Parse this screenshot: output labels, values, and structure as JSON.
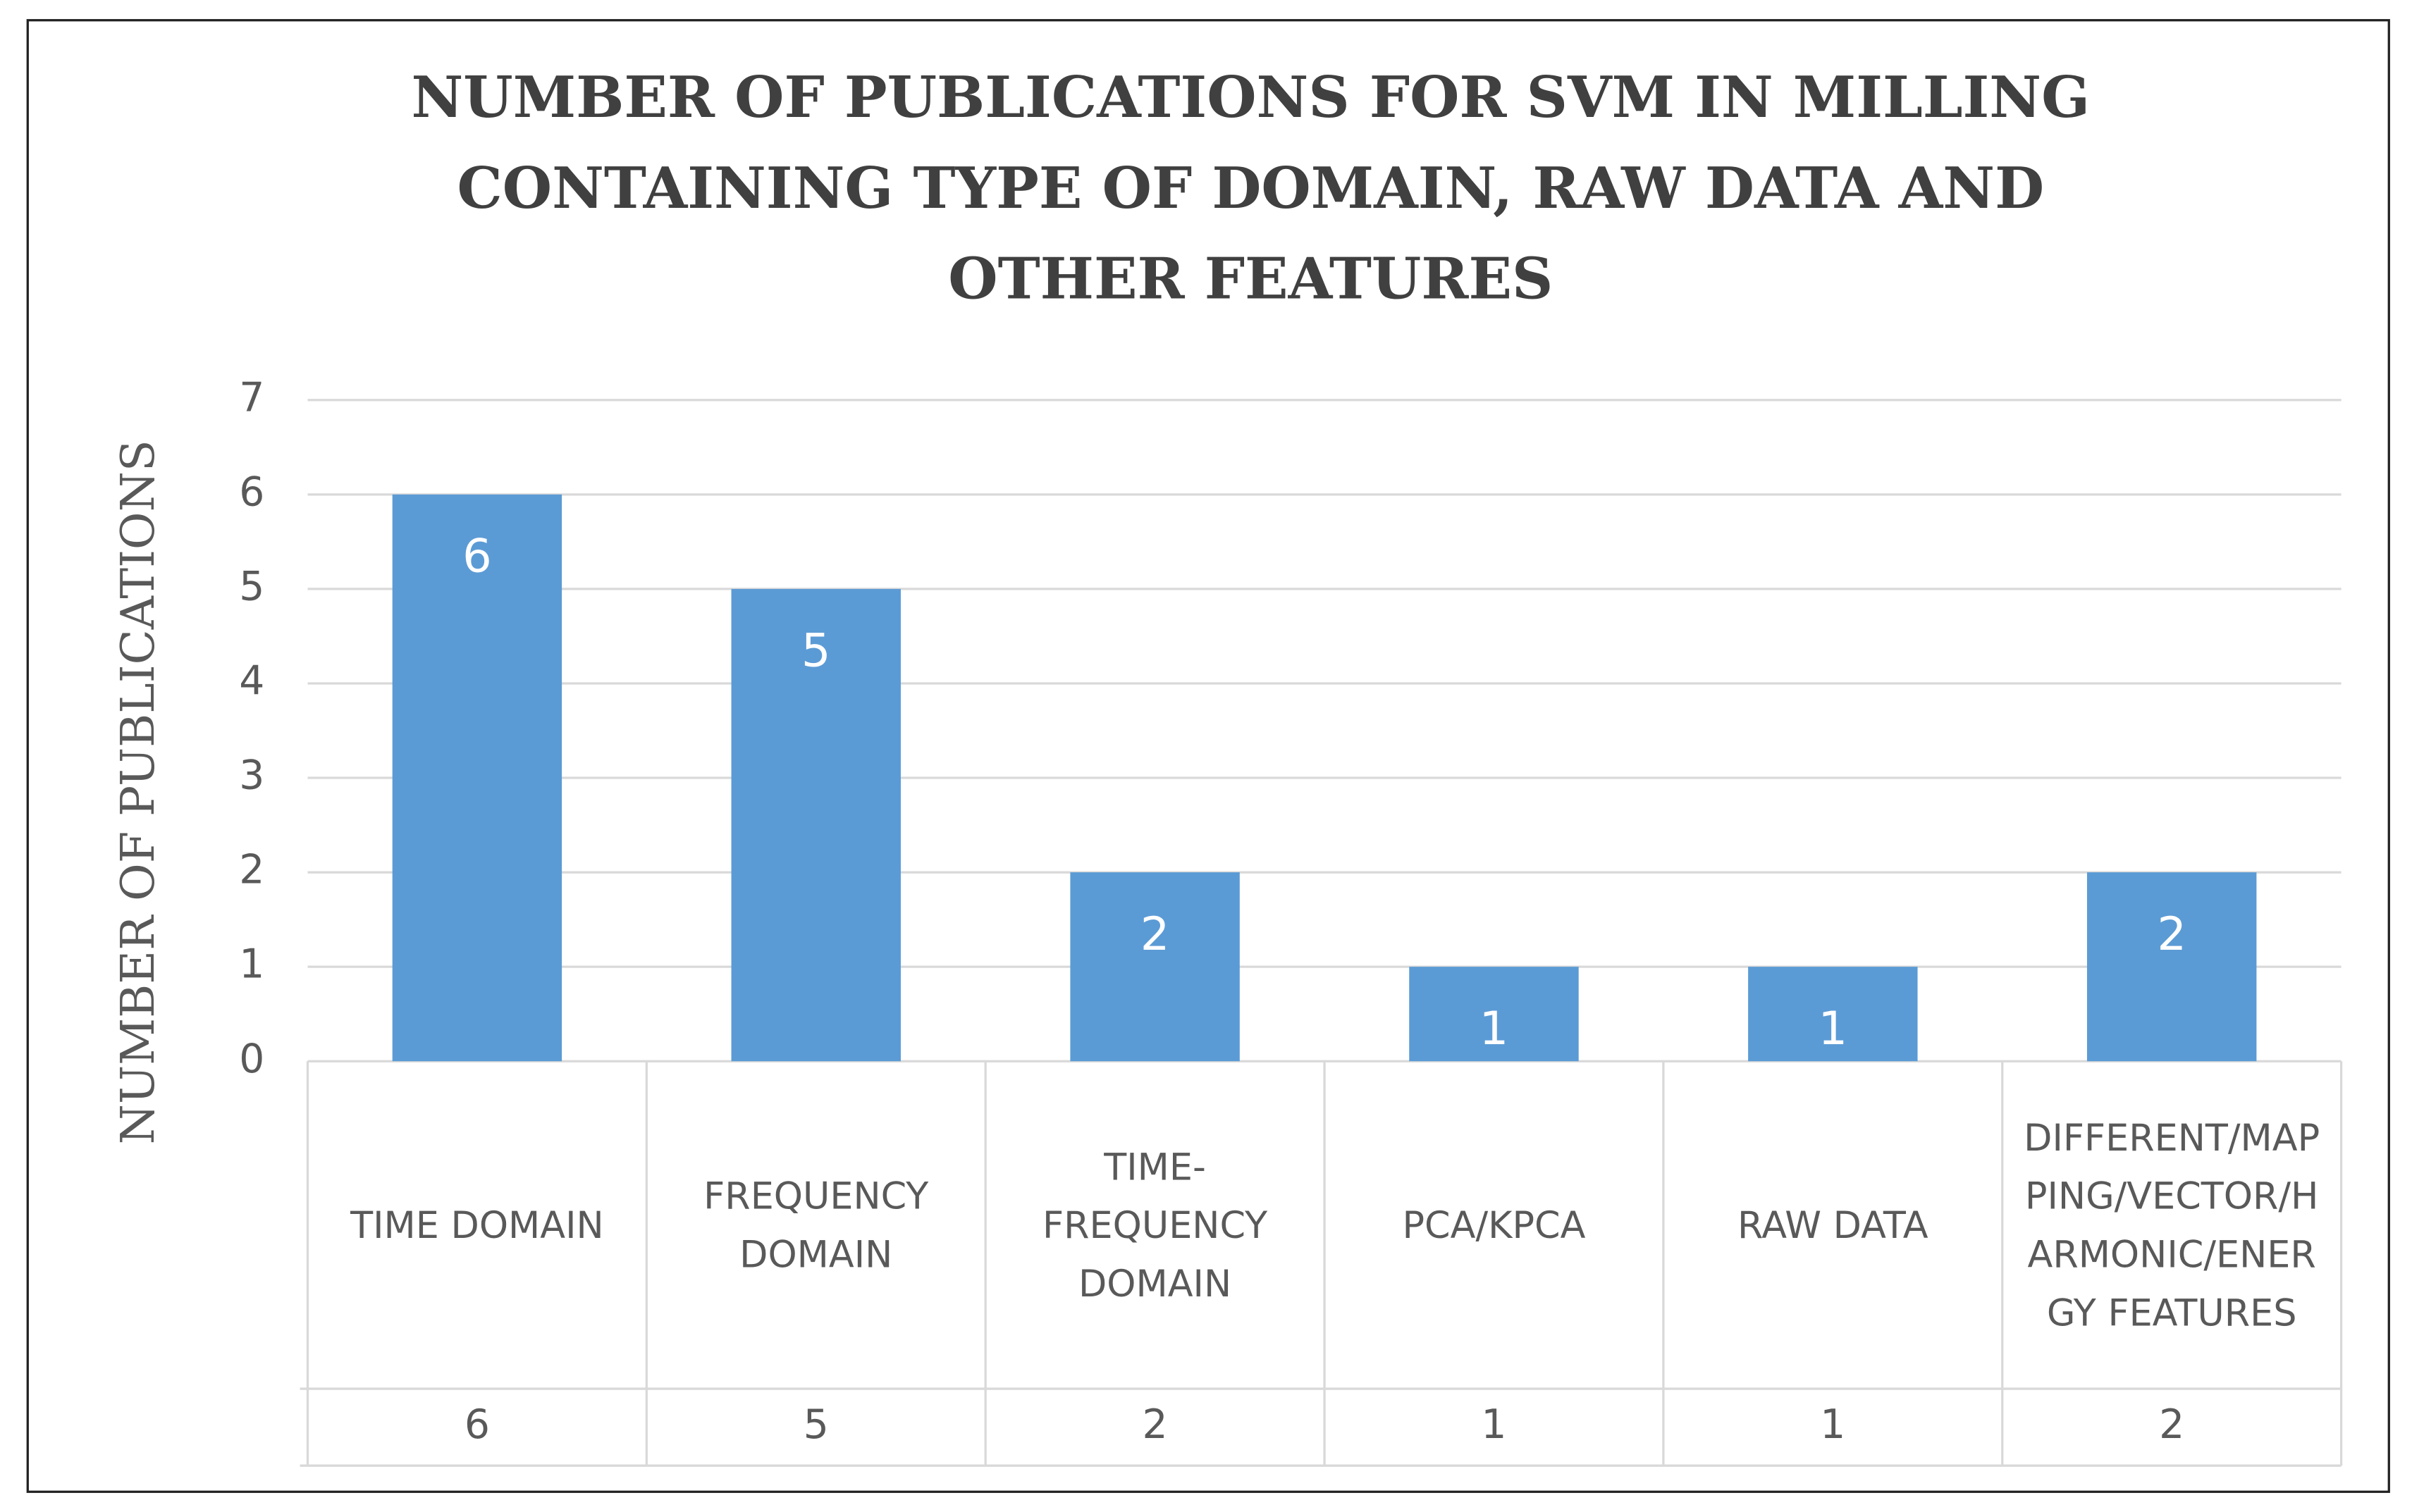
{
  "chart_data": {
    "type": "bar",
    "title": "NUMBER OF PUBLICATIONS FOR SVM IN MILLING CONTAINING TYPE OF DOMAIN, RAW DATA AND OTHER FEATURES",
    "y_label": "NUMBER OF PUBLICATIONS",
    "categories": [
      "TIME DOMAIN",
      "FREQUENCY DOMAIN",
      "TIME-FREQUENCY DOMAIN",
      "PCA/KPCA",
      "RAW DATA",
      "DIFFERENT/MAPPING/VECTOR/HARMONIC/ENERGY FEATURES"
    ],
    "values": [
      6,
      5,
      2,
      1,
      1,
      2
    ],
    "color": "#5b9bd5",
    "ylim": [
      0,
      7
    ],
    "yticks": [
      0,
      1,
      2,
      3,
      4,
      5,
      6,
      7
    ],
    "grid": true
  }
}
